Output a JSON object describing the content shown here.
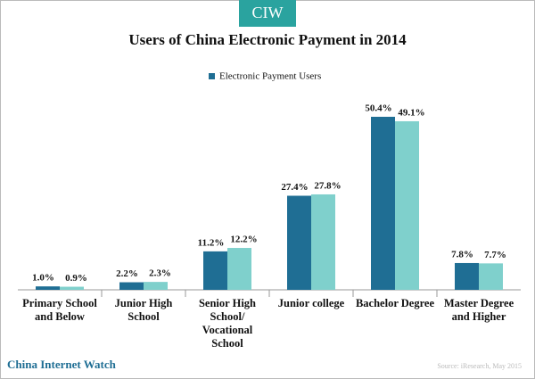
{
  "chart_data": {
    "type": "bar",
    "brand": "CIW",
    "title": "Users of China Electronic Payment in 2014",
    "categories": [
      "Primary School\nand Below",
      "Junior High\nSchool",
      "Senior High\nSchool/\nVocational\nSchool",
      "Junior college",
      "Bachelor Degree",
      "Master Degree\nand Higher"
    ],
    "series": [
      {
        "name": "Electronic Payment Users",
        "color": "#1f6e94",
        "values": [
          1.0,
          2.2,
          11.2,
          27.4,
          50.4,
          7.8
        ],
        "value_labels": [
          "1.0%",
          "2.2%",
          "11.2%",
          "27.4%",
          "50.4%",
          "7.8%"
        ]
      },
      {
        "color": "#7fd0cc",
        "values": [
          0.9,
          2.3,
          12.2,
          27.8,
          49.1,
          7.7
        ],
        "value_labels": [
          "0.9%",
          "2.3%",
          "12.2%",
          "27.8%",
          "49.1%",
          "7.7%"
        ]
      }
    ],
    "legend": "top",
    "footer": "China Internet Watch",
    "source": "Source: iResearch, May 2015"
  }
}
